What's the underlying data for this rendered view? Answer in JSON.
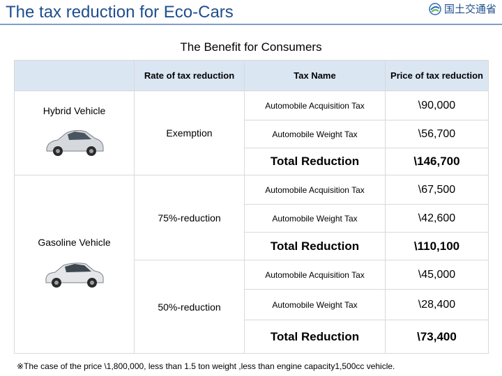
{
  "header": {
    "title": "The tax reduction for Eco-Cars",
    "logo_text": "国土交通省",
    "logo_icon": "mlit-logo-icon"
  },
  "subtitle": "The Benefit for Consumers",
  "table": {
    "columns": {
      "rate": "Rate of tax reduction",
      "name": "Tax Name",
      "price": "Price of tax reduction"
    },
    "groups": [
      {
        "vehicle": "Hybrid Vehicle",
        "rate": "Exemption",
        "rows": [
          {
            "name": "Automobile Acquisition Tax",
            "price": "\\90,000"
          },
          {
            "name": "Automobile Weight Tax",
            "price": "\\56,700"
          }
        ],
        "total_label": "Total Reduction",
        "total_price": "\\146,700"
      },
      {
        "vehicle": "Gasoline Vehicle",
        "rate": "75%-reduction",
        "rows": [
          {
            "name": "Automobile Acquisition Tax",
            "price": "\\67,500"
          },
          {
            "name": "Automobile Weight Tax",
            "price": "\\42,600"
          }
        ],
        "total_label": "Total Reduction",
        "total_price": "\\110,100"
      },
      {
        "rate": "50%-reduction",
        "rows": [
          {
            "name": "Automobile Acquisition Tax",
            "price": "\\45,000"
          },
          {
            "name": "Automobile Weight Tax",
            "price": "\\28,400"
          }
        ],
        "total_label": "Total Reduction",
        "total_price": "\\73,400"
      }
    ]
  },
  "footnote": "※The case of the price \\1,800,000, less than 1.5 ton weight ,less than engine capacity1,500cc vehicle.",
  "colors": {
    "title": "#1f4e8c",
    "header_fill": "#dbe6f3",
    "grid": "#d9d9d9"
  }
}
